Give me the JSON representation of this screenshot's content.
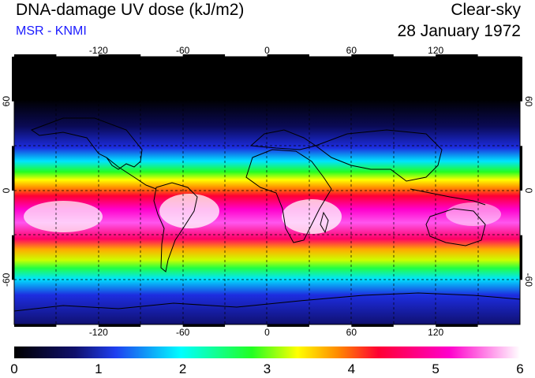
{
  "header": {
    "title": "DNA-damage UV dose (kJ/m2)",
    "source": "MSR - KNMI",
    "mode": "Clear-sky",
    "date": "28 January 1972"
  },
  "axes": {
    "lon_ticks": [
      -120,
      -60,
      0,
      60,
      120
    ],
    "lat_ticks": [
      60,
      0,
      -60
    ],
    "lon_range": [
      -180,
      180
    ],
    "lat_range": [
      -90,
      90
    ]
  },
  "colorbar": {
    "min": 0,
    "max": 6,
    "ticks": [
      0,
      1,
      2,
      3,
      4,
      5,
      6
    ]
  },
  "colors": {
    "stops": [
      "#000000",
      "#10106b",
      "#1f3ff0",
      "#00ffff",
      "#22ff22",
      "#ffff00",
      "#ff8a00",
      "#ff0033",
      "#ff00cc",
      "#ffffff"
    ]
  }
}
